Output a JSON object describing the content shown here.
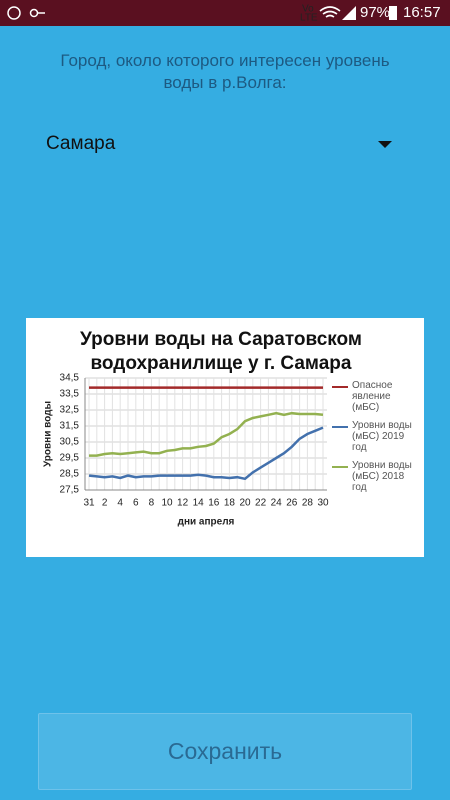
{
  "status_bar": {
    "battery": "97%",
    "time": "16:57"
  },
  "prompt": "Город, около которого интересен уровень воды в р.Волга:",
  "dropdown": {
    "selected": "Самара"
  },
  "chart_data": {
    "type": "line",
    "title": "Уровни воды на Саратовском водохранилище у г. Самара",
    "y_label": "Уровни воды",
    "x_label": "дни апреля",
    "categories": [
      "31",
      null,
      "2",
      null,
      "4",
      null,
      "6",
      null,
      "8",
      null,
      "10",
      null,
      "12",
      null,
      "14",
      null,
      "16",
      null,
      "18",
      null,
      "20",
      null,
      "22",
      null,
      "24",
      null,
      "26",
      null,
      "28",
      null,
      "30"
    ],
    "ylim": [
      27.5,
      34.5
    ],
    "yticks": [
      {
        "value": 27.5,
        "label": "27,5"
      },
      {
        "value": 28.5,
        "label": "28,5"
      },
      {
        "value": 29.5,
        "label": "29,5"
      },
      {
        "value": 30.5,
        "label": "30,5"
      },
      {
        "value": 31.5,
        "label": "31,5"
      },
      {
        "value": 32.5,
        "label": "32,5"
      },
      {
        "value": 33.5,
        "label": "33,5"
      },
      {
        "value": 34.5,
        "label": "34,5"
      }
    ],
    "grid": true,
    "legend": "right",
    "series": [
      {
        "name": "Опасное явление (мБС)",
        "color": "#a32a2a",
        "values": [
          33.9,
          33.9,
          33.9,
          33.9,
          33.9,
          33.9,
          33.9,
          33.9,
          33.9,
          33.9,
          33.9,
          33.9,
          33.9,
          33.9,
          33.9,
          33.9,
          33.9,
          33.9,
          33.9,
          33.9,
          33.9,
          33.9,
          33.9,
          33.9,
          33.9,
          33.9,
          33.9,
          33.9,
          33.9,
          33.9,
          33.9
        ]
      },
      {
        "name": "Уровни воды (мБС) 2019 год",
        "color": "#4371ad",
        "values": [
          28.4,
          28.35,
          28.3,
          28.35,
          28.25,
          28.4,
          28.3,
          28.35,
          28.35,
          28.4,
          28.4,
          28.4,
          28.4,
          28.4,
          28.45,
          28.4,
          28.3,
          28.3,
          28.25,
          28.3,
          28.2,
          28.6,
          28.9,
          29.2,
          29.5,
          29.8,
          30.2,
          30.7,
          31.0,
          31.2,
          31.4
        ]
      },
      {
        "name": "Уровни воды (мБС) 2018 год",
        "color": "#93b150",
        "values": [
          29.65,
          29.65,
          29.75,
          29.8,
          29.75,
          29.8,
          29.85,
          29.9,
          29.8,
          29.8,
          29.95,
          30.0,
          30.1,
          30.1,
          30.2,
          30.25,
          30.4,
          30.8,
          31.0,
          31.3,
          31.8,
          32.0,
          32.1,
          32.2,
          32.3,
          32.2,
          32.3,
          32.25,
          32.25,
          32.25,
          32.2
        ]
      }
    ]
  },
  "button": "Сохранить"
}
